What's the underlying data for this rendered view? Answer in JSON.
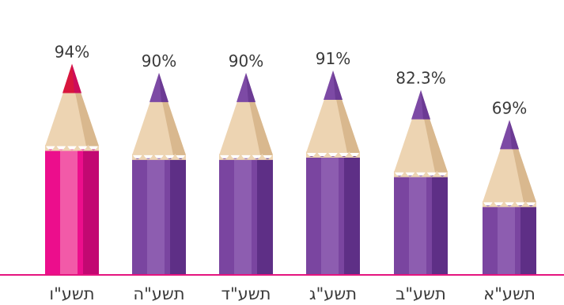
{
  "chart_data": {
    "type": "bar",
    "categories": [
      "תשע\"א",
      "תשע\"ב",
      "תשע\"ג",
      "תשע\"ד",
      "תשע\"ה",
      "תשע\"ו"
    ],
    "values": [
      69,
      82.3,
      91,
      90,
      90,
      94
    ],
    "value_labels": [
      "69%",
      "82.3%",
      "91%",
      "90%",
      "90%",
      "94%"
    ],
    "title": "",
    "xlabel": "",
    "ylabel": "",
    "ylim": [
      0,
      100
    ],
    "grid": false,
    "legend": "none",
    "bar_style": "pencil",
    "colors": {
      "pencil_body": "#7a45a0",
      "pencil_body_light": "#8d5db0",
      "pencil_body_dark": "#5e2f86",
      "pencil_tip": "#7d4aa5",
      "highlight_body": "#ec0e8c",
      "highlight_body_light": "#f25aa8",
      "highlight_body_dark": "#c20872",
      "highlight_tip": "#d8163d",
      "wood": "#edd4b2",
      "wood_shade": "#d9b88e",
      "baseline": "#e5157f",
      "text": "#3a3a3a"
    },
    "highlight_index": 5
  }
}
